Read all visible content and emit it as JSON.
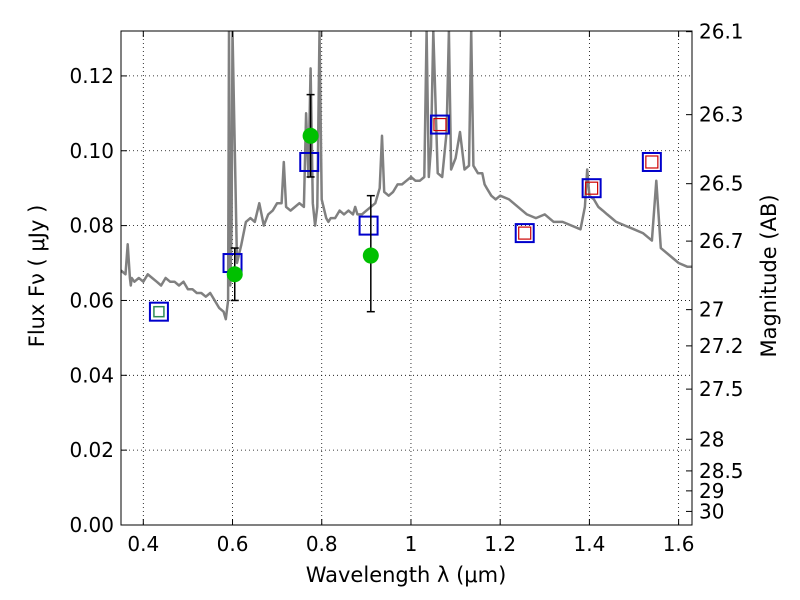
{
  "chart_data": {
    "type": "scatter",
    "xlabel": "Wavelength  λ (μm)",
    "ylabel": "Flux  Fν  ( μJy )",
    "ylabel_right": "Magnitude (AB)",
    "xlim": [
      0.35,
      1.63
    ],
    "ylim": [
      0.0,
      0.132
    ],
    "grid": true,
    "x_ticks": [
      0.4,
      0.6,
      0.8,
      1.0,
      1.2,
      1.4,
      1.6
    ],
    "x_tick_labels": [
      "0.4",
      "0.6",
      "0.8",
      "1",
      "1.2",
      "1.4",
      "1.6"
    ],
    "y_ticks": [
      0.0,
      0.02,
      0.04,
      0.06,
      0.08,
      0.1,
      0.12
    ],
    "y_tick_labels": [
      "0.00",
      "0.02",
      "0.04",
      "0.06",
      "0.08",
      "0.10",
      "0.12"
    ],
    "right_ticks": [
      26.1,
      26.3,
      26.5,
      26.7,
      27,
      27.2,
      27.5,
      28,
      28.5,
      29,
      30
    ],
    "right_tick_labels": [
      "26.1",
      "26.3",
      "26.5",
      "26.7",
      "27",
      "27.2",
      "27.5",
      "28",
      "28.5",
      "29",
      "30"
    ],
    "colors": {
      "spectrum": "#808080",
      "model_box": "#0000cc",
      "inner_green": "#2e8b57",
      "inner_red": "#cc0000",
      "observed": "#00c000",
      "errorbar": "#000000"
    },
    "spectrum": {
      "x": [
        0.35,
        0.36,
        0.365,
        0.37,
        0.372,
        0.374,
        0.38,
        0.39,
        0.4,
        0.41,
        0.42,
        0.43,
        0.44,
        0.45,
        0.46,
        0.47,
        0.48,
        0.49,
        0.5,
        0.51,
        0.52,
        0.53,
        0.54,
        0.55,
        0.56,
        0.57,
        0.58,
        0.585,
        0.59,
        0.592,
        0.595,
        0.598,
        0.6,
        0.61,
        0.62,
        0.63,
        0.64,
        0.65,
        0.66,
        0.67,
        0.68,
        0.69,
        0.7,
        0.71,
        0.715,
        0.72,
        0.73,
        0.74,
        0.75,
        0.76,
        0.765,
        0.77,
        0.775,
        0.78,
        0.785,
        0.79,
        0.795,
        0.8,
        0.81,
        0.815,
        0.82,
        0.83,
        0.84,
        0.85,
        0.86,
        0.87,
        0.875,
        0.88,
        0.89,
        0.9,
        0.91,
        0.92,
        0.93,
        0.935,
        0.94,
        0.95,
        0.96,
        0.97,
        0.98,
        0.99,
        1.0,
        1.01,
        1.02,
        1.03,
        1.035,
        1.04,
        1.045,
        1.05,
        1.06,
        1.07,
        1.08,
        1.085,
        1.09,
        1.1,
        1.11,
        1.12,
        1.13,
        1.135,
        1.14,
        1.15,
        1.16,
        1.165,
        1.17,
        1.18,
        1.19,
        1.2,
        1.22,
        1.24,
        1.26,
        1.28,
        1.3,
        1.32,
        1.34,
        1.36,
        1.38,
        1.39,
        1.395,
        1.4,
        1.41,
        1.42,
        1.43,
        1.44,
        1.45,
        1.46,
        1.48,
        1.5,
        1.52,
        1.54,
        1.55,
        1.56,
        1.58,
        1.6,
        1.62,
        1.63
      ],
      "y": [
        0.068,
        0.067,
        0.075,
        0.066,
        0.064,
        0.066,
        0.065,
        0.066,
        0.065,
        0.067,
        0.066,
        0.065,
        0.064,
        0.066,
        0.065,
        0.065,
        0.064,
        0.065,
        0.063,
        0.063,
        0.062,
        0.062,
        0.061,
        0.062,
        0.06,
        0.058,
        0.057,
        0.055,
        0.06,
        0.132,
        0.064,
        0.08,
        0.132,
        0.07,
        0.075,
        0.081,
        0.082,
        0.081,
        0.086,
        0.08,
        0.083,
        0.084,
        0.086,
        0.086,
        0.097,
        0.085,
        0.084,
        0.085,
        0.086,
        0.085,
        0.11,
        0.093,
        0.122,
        0.086,
        0.08,
        0.085,
        0.132,
        0.087,
        0.082,
        0.081,
        0.082,
        0.082,
        0.084,
        0.083,
        0.084,
        0.083,
        0.085,
        0.083,
        0.083,
        0.084,
        0.085,
        0.086,
        0.09,
        0.104,
        0.089,
        0.088,
        0.089,
        0.091,
        0.091,
        0.092,
        0.093,
        0.092,
        0.092,
        0.093,
        0.132,
        0.093,
        0.101,
        0.132,
        0.094,
        0.093,
        0.105,
        0.132,
        0.095,
        0.098,
        0.105,
        0.095,
        0.096,
        0.132,
        0.096,
        0.094,
        0.094,
        0.091,
        0.09,
        0.088,
        0.087,
        0.088,
        0.087,
        0.085,
        0.083,
        0.082,
        0.083,
        0.081,
        0.081,
        0.08,
        0.079,
        0.085,
        0.095,
        0.088,
        0.087,
        0.085,
        0.084,
        0.083,
        0.082,
        0.081,
        0.08,
        0.079,
        0.078,
        0.076,
        0.092,
        0.074,
        0.072,
        0.07,
        0.069,
        0.069
      ]
    },
    "model_points": [
      {
        "x": 0.435,
        "y": 0.057,
        "inner": "green"
      },
      {
        "x": 0.6,
        "y": 0.07,
        "inner": "none"
      },
      {
        "x": 0.772,
        "y": 0.097,
        "inner": "none"
      },
      {
        "x": 0.905,
        "y": 0.08,
        "inner": "none"
      },
      {
        "x": 1.065,
        "y": 0.107,
        "inner": "red"
      },
      {
        "x": 1.255,
        "y": 0.078,
        "inner": "red"
      },
      {
        "x": 1.405,
        "y": 0.09,
        "inner": "red"
      },
      {
        "x": 1.54,
        "y": 0.097,
        "inner": "red"
      }
    ],
    "observed_points": [
      {
        "x": 0.605,
        "y": 0.067,
        "ylo": 0.06,
        "yhi": 0.074
      },
      {
        "x": 0.775,
        "y": 0.104,
        "ylo": 0.093,
        "yhi": 0.115
      },
      {
        "x": 0.91,
        "y": 0.072,
        "ylo": 0.057,
        "yhi": 0.088
      }
    ]
  }
}
